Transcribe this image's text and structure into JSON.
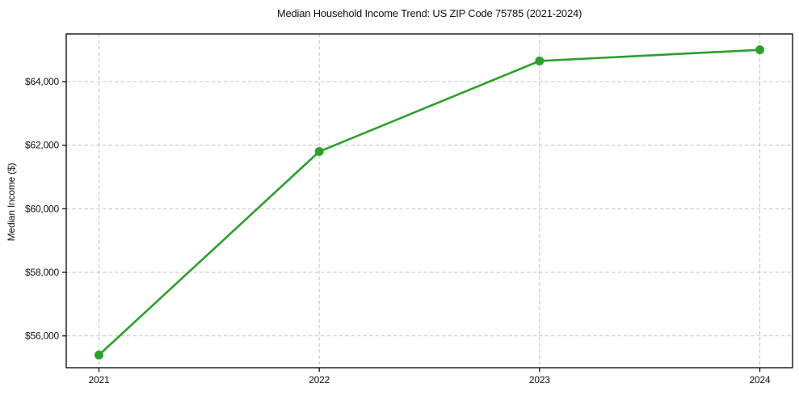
{
  "chart_data": {
    "type": "line",
    "title": "Median Household Income Trend: US ZIP Code 75785 (2021-2024)",
    "xlabel": "",
    "ylabel": "Median Income ($)",
    "categories": [
      "2021",
      "2022",
      "2023",
      "2024"
    ],
    "series": [
      {
        "name": "Median Household Income",
        "values": [
          55400,
          61800,
          64650,
          65000
        ],
        "color": "#2ca02c",
        "marker": "circle"
      }
    ],
    "ylim": [
      55000,
      65500
    ],
    "yticks": [
      56000,
      58000,
      60000,
      62000,
      64000
    ],
    "ytick_labels": [
      "$56,000",
      "$58,000",
      "$60,000",
      "$62,000",
      "$64,000"
    ],
    "xtick_labels": [
      "2021",
      "2022",
      "2023",
      "2024"
    ],
    "x_margin_frac": 0.045,
    "grid": true,
    "grid_style": "dashed",
    "grid_color": "#c4c4c4",
    "legend_position": "none",
    "axes_color": "#000000",
    "text_color": "#111111",
    "background_color": "#ffffff"
  }
}
